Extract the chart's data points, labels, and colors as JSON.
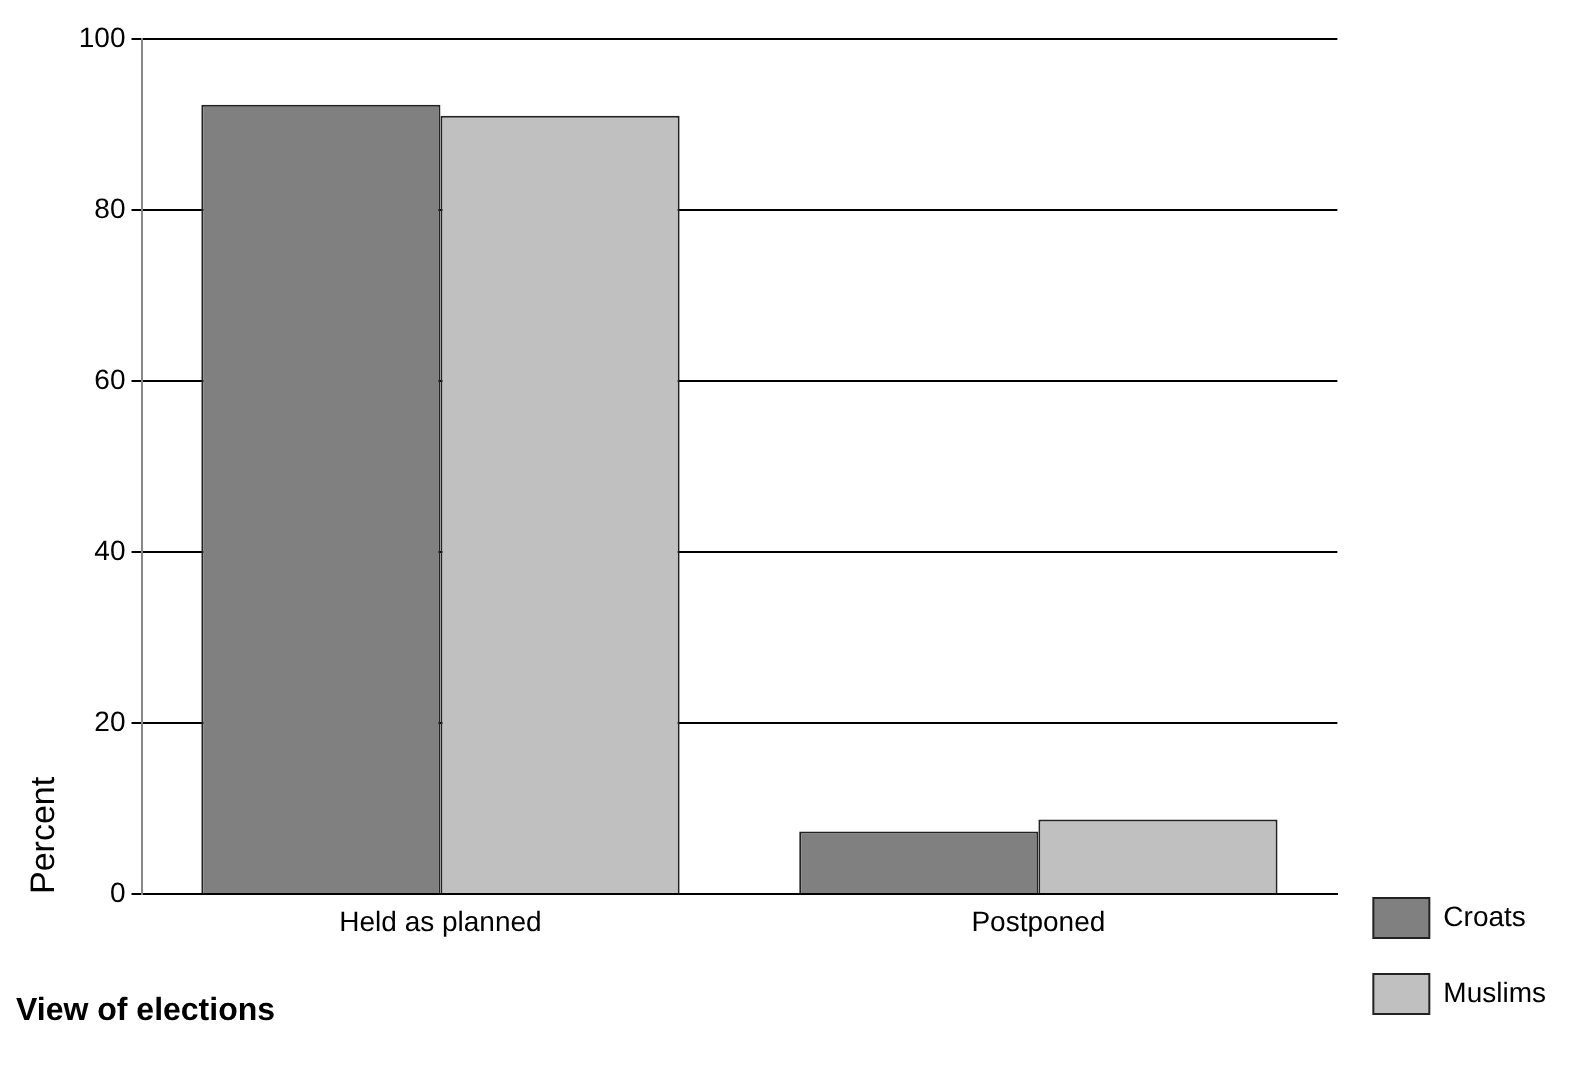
{
  "chart_data": {
    "type": "bar",
    "xlabel": "View of elections",
    "ylabel": "Percent",
    "categories": [
      "Held as planned",
      "Postponed"
    ],
    "series": [
      {
        "name": "Croats",
        "color": "#808080",
        "values": [
          92.3,
          7.3
        ]
      },
      {
        "name": "Muslims",
        "color": "#c0c0c0",
        "values": [
          91.0,
          8.7
        ]
      }
    ],
    "ylim": [
      0,
      100
    ],
    "yticks": [
      0,
      20,
      40,
      60,
      80,
      100
    ],
    "grid": "y",
    "legend": "bottom right"
  }
}
